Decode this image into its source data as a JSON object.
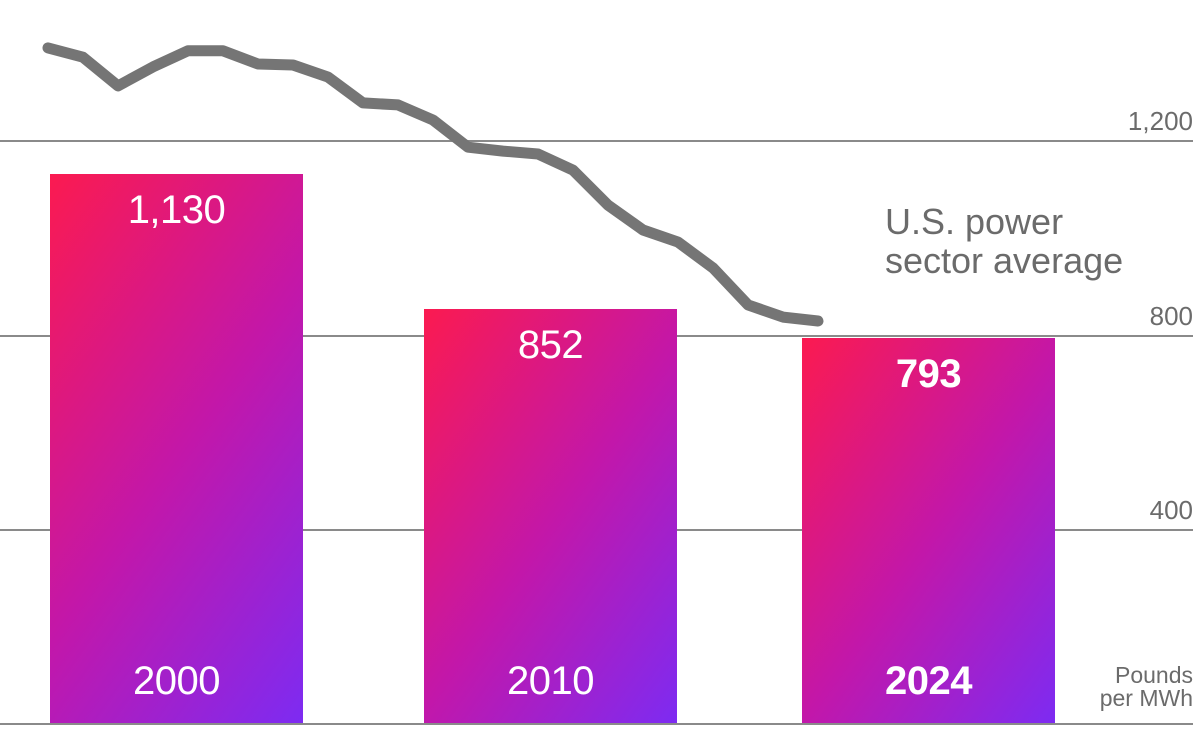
{
  "chart_data": {
    "type": "bar+line",
    "title": "",
    "xlabel": "",
    "ylabel": "Pounds per MWh",
    "bars": {
      "categories": [
        "2000",
        "2010",
        "2024"
      ],
      "values": [
        1130,
        852,
        793
      ],
      "value_labels": [
        "1,130",
        "852",
        "793"
      ],
      "emphasized": [
        false,
        false,
        true
      ]
    },
    "line_series": {
      "name": "U.S. power sector average",
      "years": [
        2001,
        2002,
        2003,
        2004,
        2005,
        2006,
        2007,
        2008,
        2009,
        2010,
        2011,
        2012,
        2013,
        2014,
        2015,
        2016,
        2017,
        2018,
        2019,
        2020,
        2021,
        2022,
        2023
      ],
      "values": [
        1389,
        1370,
        1311,
        1350,
        1383,
        1383,
        1356,
        1354,
        1329,
        1276,
        1272,
        1241,
        1185,
        1177,
        1171,
        1138,
        1066,
        1015,
        990,
        937,
        861,
        836,
        828
      ]
    },
    "yaxis": {
      "ticks": [
        {
          "value": 1200,
          "label": "1,200"
        },
        {
          "value": 800,
          "label": "800"
        },
        {
          "value": 400,
          "label": "400"
        }
      ],
      "ylim": [
        0,
        1480
      ],
      "grid": "horizontal",
      "tick_side": "right",
      "unit_lines": [
        "Pounds",
        "per MWh"
      ]
    },
    "legend_position": "in-plot annotation near line"
  },
  "annotation": {
    "line1": "U.S. power",
    "line2": "sector average"
  },
  "colors": {
    "bar_gradient_start": "#fb1a50",
    "bar_gradient_mid": "#c217aa",
    "bar_gradient_end": "#7d2bf2",
    "line": "#757575",
    "grid": "#8a8a8a",
    "axis_text": "#6b6b6b",
    "bar_text": "#ffffff",
    "background": "#ffffff"
  }
}
